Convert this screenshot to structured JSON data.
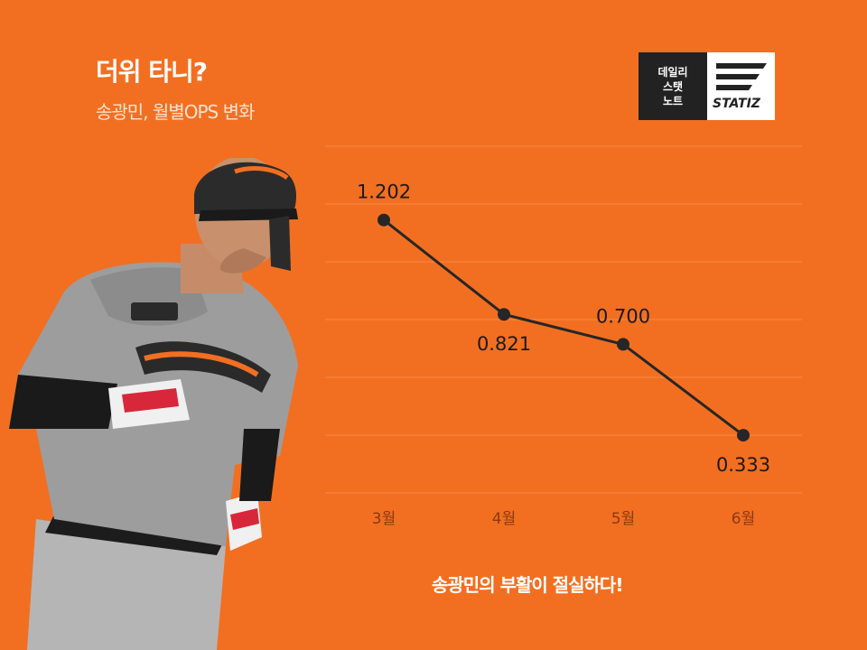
{
  "header": {
    "title": "더위 타니?",
    "subtitle": "송광민, 월별OPS 변화"
  },
  "logo": {
    "lines": [
      "데일리",
      "스탯",
      "노트"
    ],
    "brand": "STATIZ"
  },
  "footer": {
    "caption": "송광민의 부활이 절실하다!"
  },
  "chart_data": {
    "type": "line",
    "categories": [
      "3월",
      "4월",
      "5월",
      "6월"
    ],
    "values": [
      1.202,
      0.821,
      0.7,
      0.333
    ],
    "value_labels": [
      "1.202",
      "0.821",
      "0.700",
      "0.333"
    ],
    "ylim": [
      0.1,
      1.5
    ],
    "grid": true,
    "legend": "none",
    "colors": {
      "background": "#f26f21",
      "line": "#262626",
      "grid": "#f58a47",
      "tick": "#8a3a10",
      "label": "#1a1a1a"
    }
  }
}
